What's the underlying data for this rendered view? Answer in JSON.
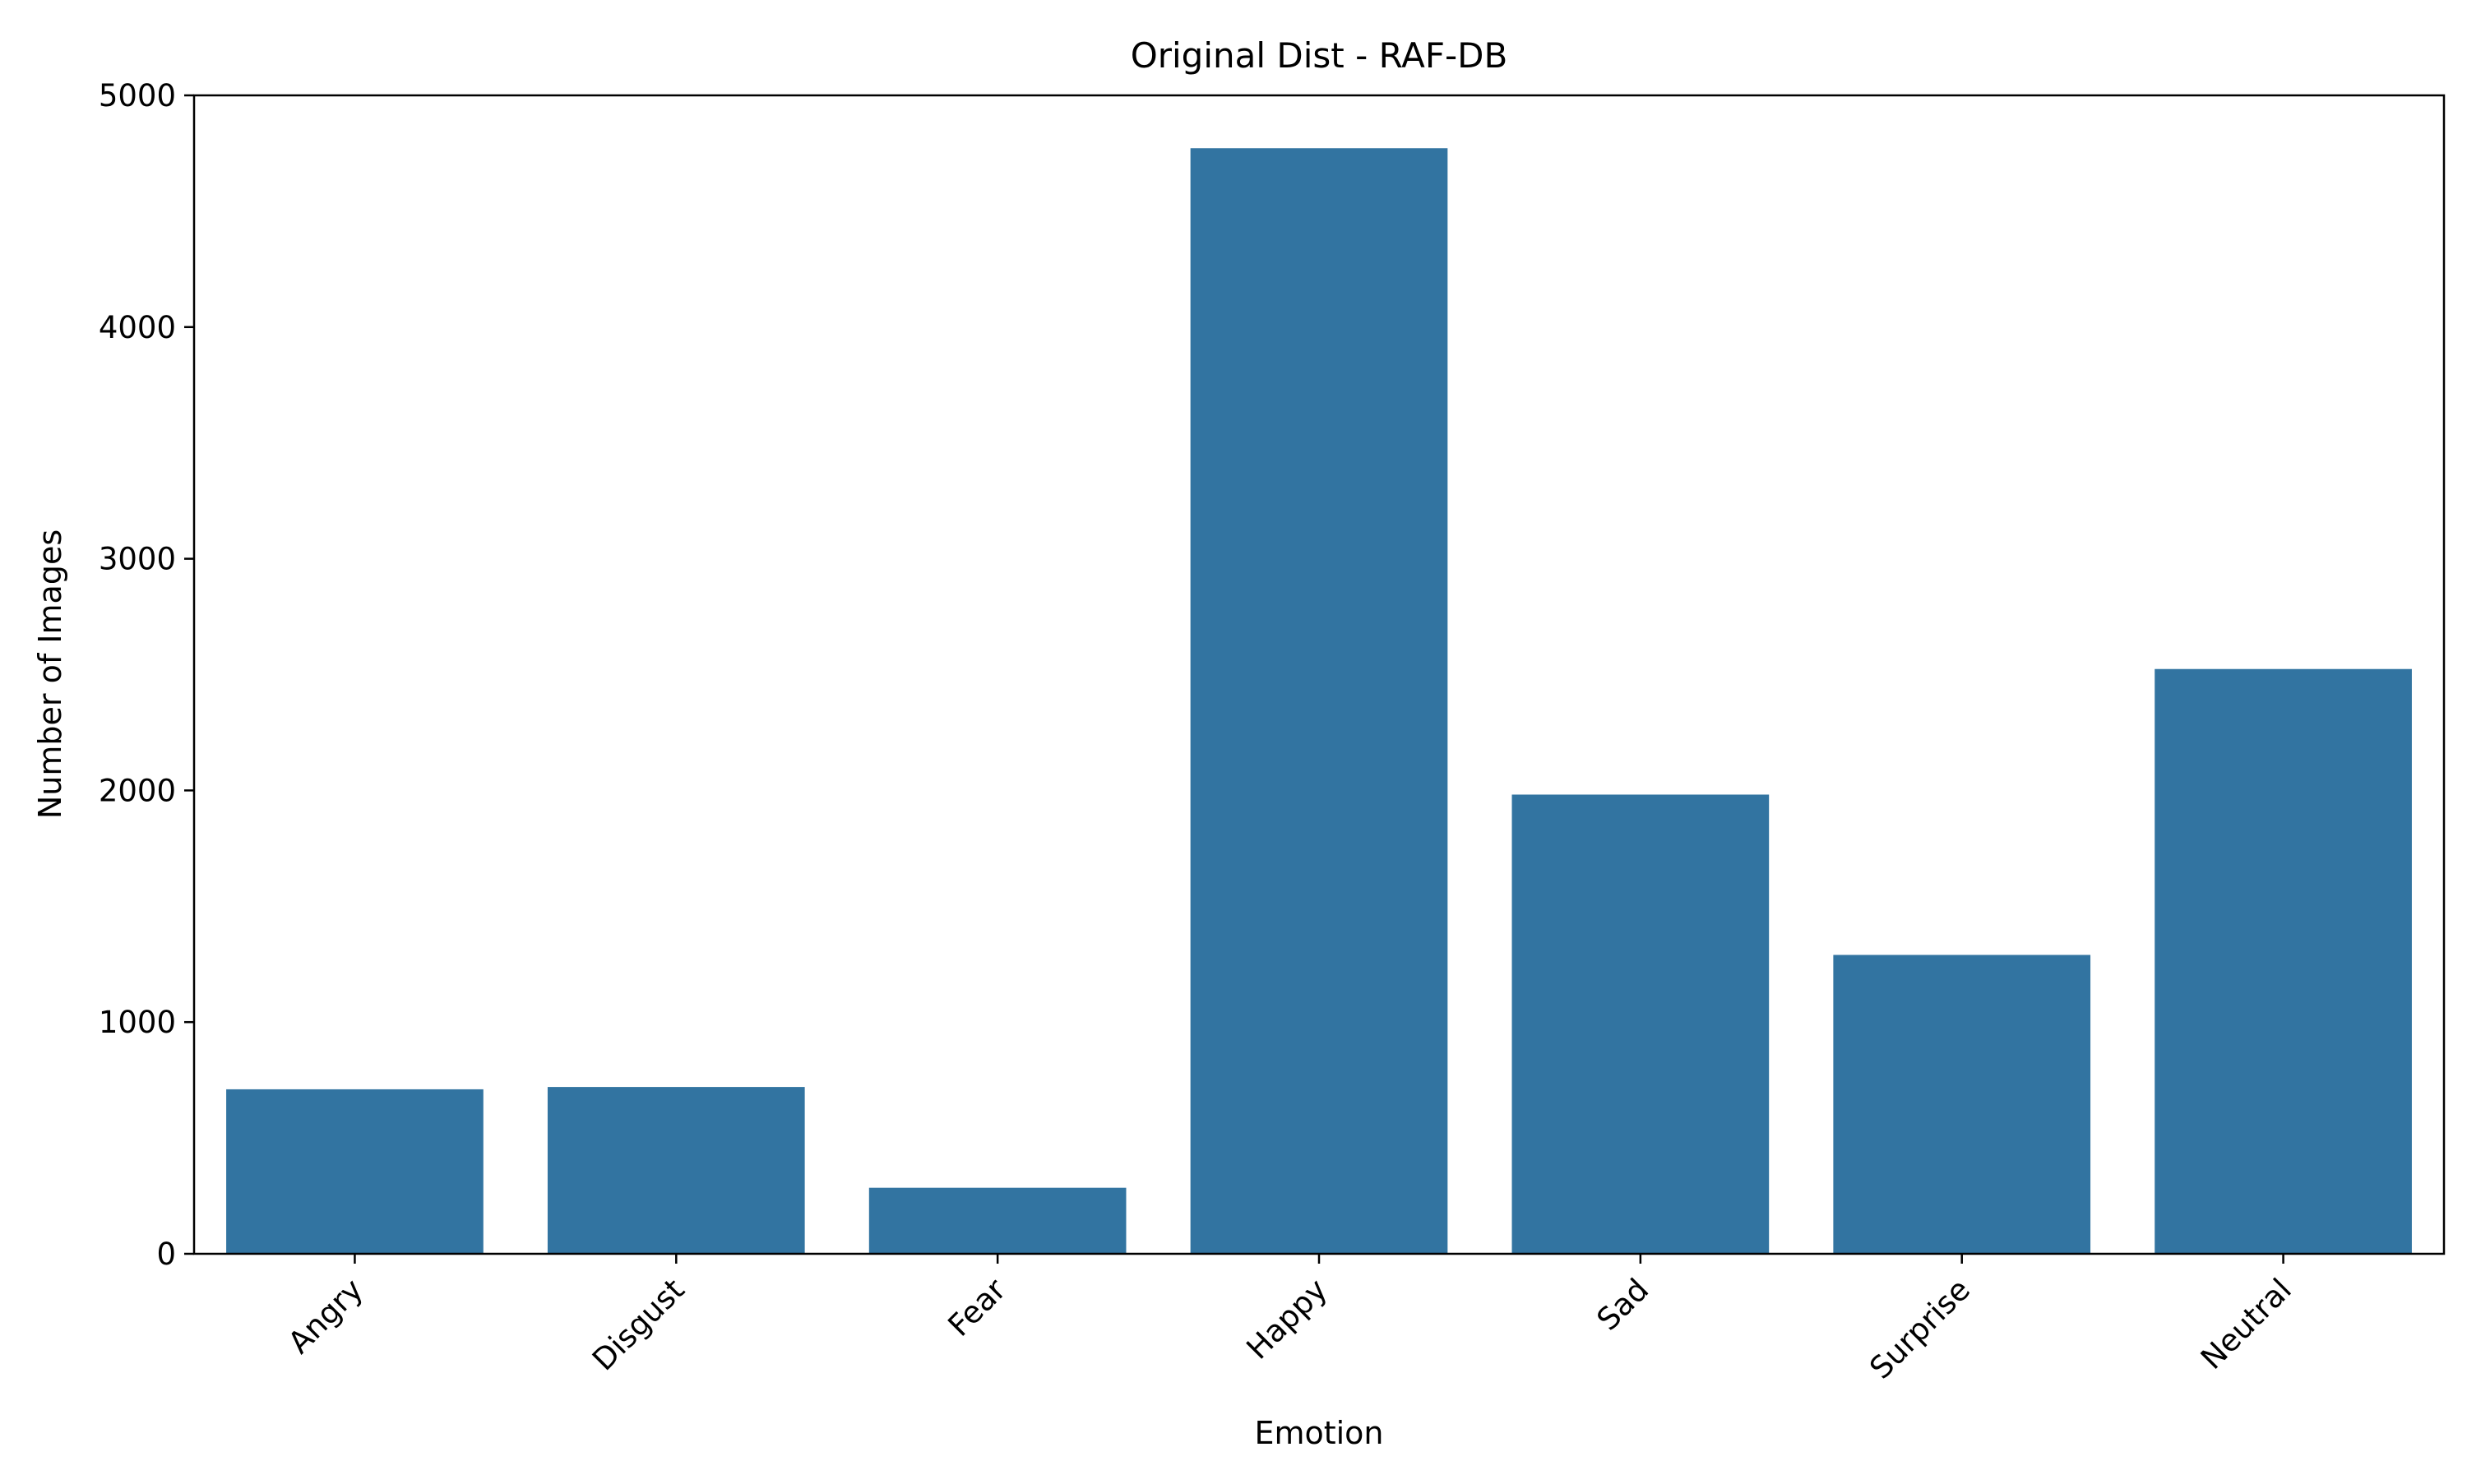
{
  "chart_data": {
    "type": "bar",
    "title": "Original Dist - RAF-DB",
    "xlabel": "Emotion",
    "ylabel": "Number of Images",
    "categories": [
      "Angry",
      "Disgust",
      "Fear",
      "Happy",
      "Sad",
      "Surprise",
      "Neutral"
    ],
    "values": [
      710,
      720,
      285,
      4772,
      1982,
      1290,
      2524
    ],
    "ylim": [
      0,
      5000
    ],
    "yticks": [
      0,
      1000,
      2000,
      3000,
      4000,
      5000
    ],
    "bar_color": "#3274a1",
    "grid": false,
    "legend": "none"
  }
}
